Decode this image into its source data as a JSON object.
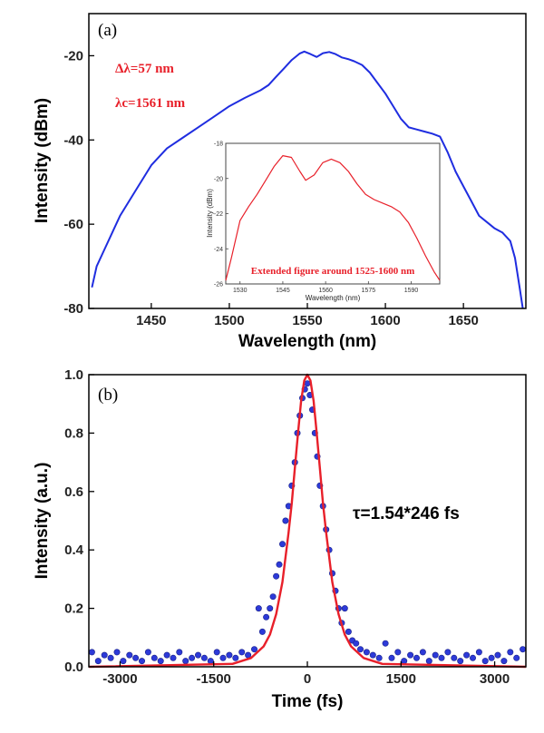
{
  "chart_data": [
    {
      "type": "line",
      "panel_label": "(a)",
      "xlabel": "Wavelength (nm)",
      "ylabel": "Intensity (dBm)",
      "xlim": [
        1410,
        1690
      ],
      "ylim": [
        -80,
        -10
      ],
      "xticks": [
        1450,
        1500,
        1550,
        1600,
        1650
      ],
      "yticks": [
        -80,
        -60,
        -40,
        -20
      ],
      "annotations": [
        "Δλ=57 nm",
        "λc=1561 nm"
      ],
      "series": [
        {
          "color": "#1f2de0",
          "x": [
            1412,
            1415,
            1420,
            1425,
            1430,
            1440,
            1450,
            1460,
            1470,
            1480,
            1490,
            1500,
            1510,
            1520,
            1525,
            1530,
            1535,
            1540,
            1545,
            1548,
            1552,
            1556,
            1560,
            1564,
            1568,
            1572,
            1576,
            1580,
            1585,
            1590,
            1595,
            1600,
            1605,
            1610,
            1615,
            1620,
            1625,
            1630,
            1635,
            1640,
            1645,
            1650,
            1655,
            1660,
            1665,
            1670,
            1675,
            1680,
            1683,
            1686,
            1688
          ],
          "y": [
            -75,
            -70,
            -66,
            -62,
            -58,
            -52,
            -46,
            -42,
            -39.5,
            -37,
            -34.5,
            -32,
            -30,
            -28.2,
            -27,
            -25,
            -23,
            -21,
            -19.5,
            -19,
            -19.6,
            -20.3,
            -19.4,
            -19.1,
            -19.6,
            -20.4,
            -20.8,
            -21.3,
            -22.2,
            -24,
            -26.5,
            -29,
            -32,
            -35,
            -37,
            -37.5,
            -38,
            -38.5,
            -39.2,
            -43,
            -47.5,
            -51,
            -54.5,
            -58,
            -59.5,
            -61,
            -62,
            -64,
            -68,
            -75,
            -80
          ]
        }
      ],
      "inset": {
        "type": "line",
        "xlabel": "Wavelength (nm)",
        "ylabel": "Intensity (dBm)",
        "xlim": [
          1525,
          1600
        ],
        "ylim": [
          -26,
          -18
        ],
        "xticks": [
          1530,
          1545,
          1560,
          1575,
          1590
        ],
        "yticks": [
          -26,
          -24,
          -22,
          -20,
          -18
        ],
        "note": "Extended figure around 1525-1600 nm",
        "series": [
          {
            "color": "#e8202a",
            "x": [
              1525,
              1527,
              1530,
              1533,
              1536,
              1539,
              1542,
              1545,
              1548,
              1551,
              1553,
              1556,
              1559,
              1562,
              1565,
              1568,
              1571,
              1574,
              1577,
              1580,
              1583,
              1586,
              1589,
              1592,
              1595,
              1598,
              1600
            ],
            "y": [
              -25.8,
              -24.5,
              -22.4,
              -21.6,
              -20.9,
              -20.1,
              -19.3,
              -18.7,
              -18.8,
              -19.6,
              -20.1,
              -19.8,
              -19.1,
              -18.9,
              -19.1,
              -19.6,
              -20.3,
              -20.9,
              -21.2,
              -21.4,
              -21.6,
              -21.9,
              -22.5,
              -23.4,
              -24.4,
              -25.3,
              -25.8
            ]
          }
        ]
      }
    },
    {
      "type": "scatter",
      "panel_label": "(b)",
      "xlabel": "Time (fs)",
      "ylabel": "Intensity (a.u.)",
      "xlim": [
        -3500,
        3500
      ],
      "ylim": [
        0.0,
        1.0
      ],
      "xticks": [
        -3000,
        -1500,
        0,
        1500,
        3000
      ],
      "yticks": [
        0.0,
        0.2,
        0.4,
        0.6,
        0.8,
        1.0
      ],
      "annotations": [
        "τ=1.54*246 fs"
      ],
      "fit": {
        "color": "#e8202a",
        "x": [
          -3500,
          -1200,
          -900,
          -700,
          -600,
          -500,
          -400,
          -300,
          -250,
          -200,
          -150,
          -100,
          -50,
          0,
          50,
          100,
          150,
          200,
          250,
          300,
          400,
          500,
          600,
          700,
          900,
          1200,
          3500
        ],
        "y": [
          0.0,
          0.01,
          0.03,
          0.07,
          0.11,
          0.18,
          0.29,
          0.46,
          0.56,
          0.68,
          0.8,
          0.91,
          0.98,
          1.0,
          0.98,
          0.91,
          0.8,
          0.68,
          0.56,
          0.46,
          0.29,
          0.18,
          0.11,
          0.07,
          0.03,
          0.01,
          0.0
        ]
      },
      "points": {
        "color": "#2d3ad8",
        "x": [
          -3450,
          -3350,
          -3250,
          -3150,
          -3050,
          -2950,
          -2850,
          -2750,
          -2650,
          -2550,
          -2450,
          -2350,
          -2250,
          -2150,
          -2050,
          -1950,
          -1850,
          -1750,
          -1650,
          -1550,
          -1450,
          -1350,
          -1250,
          -1150,
          -1050,
          -950,
          -850,
          -780,
          -720,
          -660,
          -600,
          -550,
          -500,
          -450,
          -400,
          -350,
          -300,
          -250,
          -200,
          -160,
          -120,
          -80,
          -40,
          0,
          40,
          80,
          120,
          160,
          200,
          250,
          300,
          350,
          400,
          450,
          500,
          550,
          600,
          660,
          720,
          780,
          850,
          950,
          1050,
          1150,
          1250,
          1350,
          1450,
          1550,
          1650,
          1750,
          1850,
          1950,
          2050,
          2150,
          2250,
          2350,
          2450,
          2550,
          2650,
          2750,
          2850,
          2950,
          3050,
          3150,
          3250,
          3350,
          3450
        ],
        "y": [
          0.05,
          0.02,
          0.04,
          0.03,
          0.05,
          0.02,
          0.04,
          0.03,
          0.02,
          0.05,
          0.03,
          0.02,
          0.04,
          0.03,
          0.05,
          0.02,
          0.03,
          0.04,
          0.03,
          0.02,
          0.05,
          0.03,
          0.04,
          0.03,
          0.05,
          0.04,
          0.06,
          0.2,
          0.12,
          0.17,
          0.2,
          0.24,
          0.31,
          0.35,
          0.42,
          0.5,
          0.55,
          0.62,
          0.7,
          0.8,
          0.86,
          0.92,
          0.95,
          0.97,
          0.93,
          0.88,
          0.8,
          0.72,
          0.62,
          0.55,
          0.47,
          0.4,
          0.32,
          0.26,
          0.2,
          0.15,
          0.2,
          0.12,
          0.09,
          0.08,
          0.06,
          0.05,
          0.04,
          0.03,
          0.08,
          0.03,
          0.05,
          0.02,
          0.04,
          0.03,
          0.05,
          0.02,
          0.04,
          0.03,
          0.05,
          0.03,
          0.02,
          0.04,
          0.03,
          0.05,
          0.02,
          0.03,
          0.04,
          0.02,
          0.05,
          0.03,
          0.06
        ]
      }
    }
  ]
}
